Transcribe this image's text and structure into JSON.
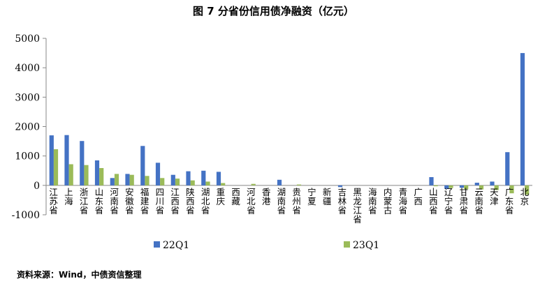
{
  "title": "图 7  分省份信用债净融资（亿元）",
  "source": "资料来源：Wind，中债资信整理",
  "colors": {
    "s1": "#4472C4",
    "s2": "#9BBB59",
    "axis": "#888888"
  },
  "chart_data": {
    "type": "bar",
    "title": "图 7  分省份信用债净融资（亿元）",
    "ylim": [
      -1000,
      5000
    ],
    "yticks": [
      "5000",
      "4000",
      "3000",
      "2000",
      "1000",
      "0",
      "-1000"
    ],
    "ytick_values": [
      5000,
      4000,
      3000,
      2000,
      1000,
      0,
      -1000
    ],
    "grid": false,
    "legend": "bottom",
    "categories": [
      "江苏省",
      "上海",
      "浙江省",
      "山东省",
      "河南省",
      "安徽省",
      "福建省",
      "四川省",
      "江西省",
      "陕西省",
      "湖北省",
      "重庆",
      "西藏",
      "河北省",
      "香港",
      "湖南省",
      "贵州省",
      "宁夏",
      "新疆",
      "吉林省",
      "黑龙江省",
      "海南省",
      "内蒙古",
      "青海省",
      "广西",
      "山西省",
      "辽宁省",
      "甘肃省",
      "云南省",
      "天津",
      "广东省",
      "北京"
    ],
    "series": [
      {
        "name": "22Q1",
        "values": [
          1700,
          1710,
          1510,
          850,
          250,
          390,
          1340,
          770,
          360,
          480,
          500,
          460,
          0,
          0,
          0,
          190,
          0,
          0,
          0,
          -60,
          0,
          0,
          0,
          0,
          0,
          280,
          -120,
          -80,
          90,
          130,
          1130,
          4500
        ]
      },
      {
        "name": "23Q1",
        "values": [
          1230,
          720,
          690,
          590,
          390,
          360,
          320,
          250,
          230,
          170,
          130,
          80,
          0,
          50,
          0,
          0,
          30,
          0,
          0,
          0,
          0,
          0,
          0,
          0,
          0,
          -30,
          -90,
          -130,
          -140,
          -160,
          -270,
          -320
        ]
      }
    ]
  }
}
